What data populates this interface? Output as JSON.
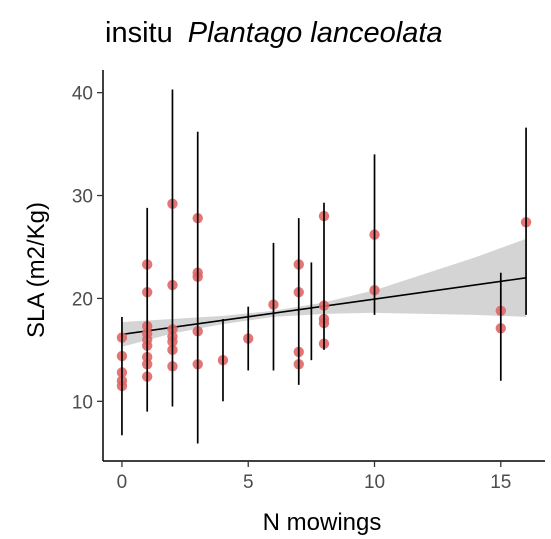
{
  "chart_data": {
    "type": "scatter",
    "title_plain": "insitu",
    "title_italic": "Plantago lanceolata",
    "xlabel": "N mowings",
    "ylabel": "SLA (m2/Kg)",
    "xlim": [
      -0.75,
      16.75
    ],
    "ylim": [
      4.2,
      42.2
    ],
    "x_ticks": [
      0,
      5,
      10,
      15
    ],
    "y_ticks": [
      10,
      20,
      30,
      40
    ],
    "grid": false,
    "point_color": "#e06666",
    "fit_color": "#000000",
    "ribbon_color": "#cccccc",
    "points": [
      {
        "x": 0,
        "y": 16.2
      },
      {
        "x": 0,
        "y": 14.4
      },
      {
        "x": 0,
        "y": 12.8
      },
      {
        "x": 0,
        "y": 12.0
      },
      {
        "x": 0,
        "y": 11.5
      },
      {
        "x": 1,
        "y": 23.3
      },
      {
        "x": 1,
        "y": 20.6
      },
      {
        "x": 1,
        "y": 17.3
      },
      {
        "x": 1,
        "y": 16.6
      },
      {
        "x": 1,
        "y": 16.0
      },
      {
        "x": 1,
        "y": 15.4
      },
      {
        "x": 1,
        "y": 14.3
      },
      {
        "x": 1,
        "y": 13.6
      },
      {
        "x": 1,
        "y": 12.4
      },
      {
        "x": 2,
        "y": 29.2
      },
      {
        "x": 2,
        "y": 21.3
      },
      {
        "x": 2,
        "y": 17.0
      },
      {
        "x": 2,
        "y": 16.3
      },
      {
        "x": 2,
        "y": 15.8
      },
      {
        "x": 2,
        "y": 15.0
      },
      {
        "x": 2,
        "y": 13.4
      },
      {
        "x": 3,
        "y": 27.8
      },
      {
        "x": 3,
        "y": 22.5
      },
      {
        "x": 3,
        "y": 22.1
      },
      {
        "x": 3,
        "y": 16.8
      },
      {
        "x": 3,
        "y": 13.6
      },
      {
        "x": 4,
        "y": 14.0
      },
      {
        "x": 5,
        "y": 16.1
      },
      {
        "x": 6,
        "y": 19.4
      },
      {
        "x": 7,
        "y": 23.3
      },
      {
        "x": 7,
        "y": 20.6
      },
      {
        "x": 7,
        "y": 14.8
      },
      {
        "x": 7,
        "y": 13.6
      },
      {
        "x": 8,
        "y": 28.0
      },
      {
        "x": 8,
        "y": 19.3
      },
      {
        "x": 8,
        "y": 18.0
      },
      {
        "x": 8,
        "y": 17.6
      },
      {
        "x": 8,
        "y": 15.6
      },
      {
        "x": 10,
        "y": 26.2
      },
      {
        "x": 10,
        "y": 20.8
      },
      {
        "x": 15,
        "y": 18.8
      },
      {
        "x": 15,
        "y": 17.1
      },
      {
        "x": 16,
        "y": 27.4
      }
    ],
    "error_bars": [
      {
        "x": 0,
        "low": 6.7,
        "high": 18.2
      },
      {
        "x": 1,
        "low": 9.0,
        "high": 28.8
      },
      {
        "x": 2,
        "low": 9.5,
        "high": 40.3
      },
      {
        "x": 3,
        "low": 5.9,
        "high": 36.2
      },
      {
        "x": 4,
        "low": 10.0,
        "high": 18.0
      },
      {
        "x": 5,
        "low": 13.0,
        "high": 19.2
      },
      {
        "x": 6,
        "low": 13.0,
        "high": 25.4
      },
      {
        "x": 7,
        "low": 11.6,
        "high": 27.8
      },
      {
        "x": 7.5,
        "low": 14.0,
        "high": 23.5
      },
      {
        "x": 8,
        "low": 15.0,
        "high": 29.3
      },
      {
        "x": 10,
        "low": 18.4,
        "high": 34.0
      },
      {
        "x": 15,
        "low": 12.0,
        "high": 22.5
      },
      {
        "x": 16,
        "low": 18.4,
        "high": 36.6
      }
    ],
    "fit_line": {
      "x": [
        0,
        16
      ],
      "y": [
        16.5,
        22.0
      ]
    },
    "confidence_band": {
      "x": [
        0,
        2,
        4,
        6,
        8,
        10,
        12,
        14,
        16
      ],
      "lower": [
        15.3,
        16.6,
        17.5,
        18.2,
        18.5,
        18.6,
        18.5,
        18.4,
        18.2
      ],
      "upper": [
        17.7,
        18.0,
        18.3,
        18.8,
        19.6,
        20.8,
        22.4,
        24.0,
        25.8
      ]
    }
  }
}
